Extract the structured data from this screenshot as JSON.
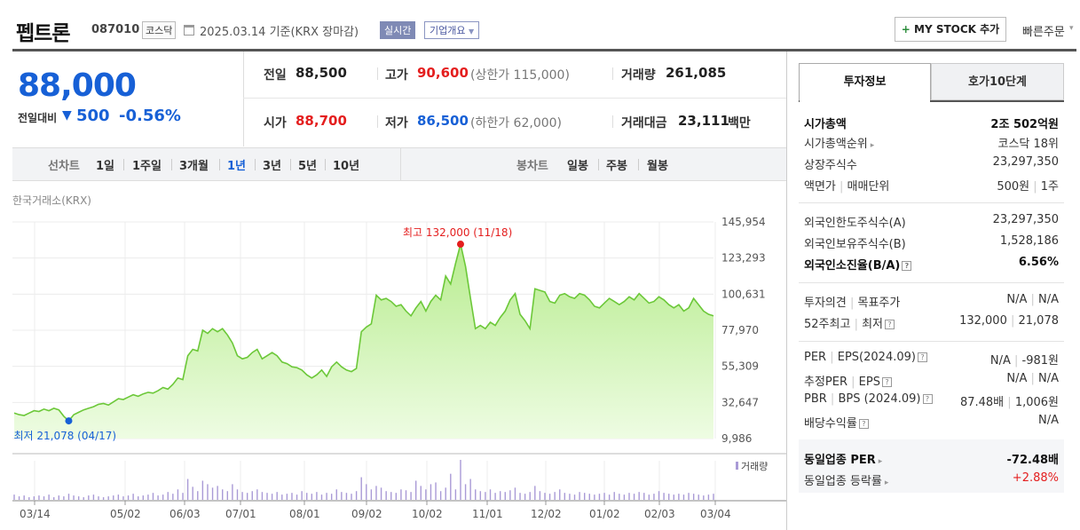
{
  "header": {
    "company": "펩트론",
    "code": "087010",
    "market": "코스닥",
    "base_date": "2025.03.14  기준(KRX 장마감)",
    "realtime": "실시간",
    "corp_info": "기업개요",
    "my_stock": "MY STOCK 추가",
    "quick_order": "빠른주문"
  },
  "price": {
    "current": "88,000",
    "change_label": "전일대비",
    "change": "500",
    "change_rate": "-0.56%",
    "prev_label": "전일",
    "prev": "88,500",
    "high_label": "고가",
    "high": "90,600",
    "upper_limit": "(상한가 115,000)",
    "volume_label": "거래량",
    "volume": "261,085",
    "open_label": "시가",
    "open": "88,700",
    "low_label": "저가",
    "low": "86,500",
    "lower_limit": "(하한가 62,000)",
    "amount_label": "거래대금",
    "amount": "23,111",
    "amount_unit": "백만"
  },
  "period_bar": {
    "line_label": "선차트",
    "line_periods": [
      "1일",
      "1주일",
      "3개월",
      "1년",
      "3년",
      "5년",
      "10년"
    ],
    "selected": "1년",
    "candle_label": "봉차트",
    "candle_periods": [
      "일봉",
      "주봉",
      "월봉"
    ]
  },
  "chart_data": {
    "type": "area",
    "source": "한국거래소(KRX)",
    "y_ticks": [
      "145,954",
      "123,293",
      "100,631",
      "77,970",
      "55,309",
      "32,647",
      "9,986"
    ],
    "ylim": [
      9986,
      145954
    ],
    "x_ticks": [
      "03/14",
      "05/02",
      "06/03",
      "07/01",
      "08/01",
      "09/02",
      "10/02",
      "11/01",
      "12/02",
      "01/02",
      "02/03",
      "03/04"
    ],
    "high_label": "최고 132,000 (11/18)",
    "low_label": "최저 21,078 (04/17)",
    "volume_label": "거래량",
    "prices": [
      26000,
      25000,
      24500,
      26000,
      27500,
      27000,
      28500,
      27500,
      29000,
      28000,
      24000,
      21078,
      25000,
      26500,
      28000,
      29000,
      30000,
      31500,
      32000,
      31000,
      33000,
      35000,
      34500,
      36000,
      37500,
      36500,
      38000,
      39000,
      38500,
      40000,
      42000,
      41000,
      44000,
      48000,
      47000,
      62000,
      66000,
      65000,
      78000,
      76000,
      79000,
      77000,
      79000,
      75000,
      70000,
      62000,
      60000,
      61000,
      64000,
      66000,
      60000,
      62000,
      64000,
      62000,
      58000,
      57000,
      55000,
      54500,
      53000,
      50000,
      48000,
      50000,
      53000,
      49000,
      55000,
      58000,
      55000,
      53000,
      52000,
      54000,
      77000,
      80000,
      82000,
      100000,
      97000,
      98000,
      96000,
      93000,
      94000,
      90000,
      87000,
      92000,
      96000,
      90000,
      96000,
      100000,
      97000,
      112000,
      107000,
      120000,
      132000,
      118000,
      98000,
      79000,
      81000,
      79000,
      83000,
      81000,
      86000,
      90000,
      97000,
      101000,
      88000,
      84000,
      79000,
      104000,
      103000,
      102000,
      96000,
      95000,
      100000,
      101000,
      99000,
      98000,
      101000,
      100000,
      97000,
      93000,
      92000,
      95000,
      98000,
      96000,
      94000,
      96000,
      99000,
      97000,
      101000,
      98000,
      95000,
      96000,
      99000,
      97000,
      94000,
      92000,
      94000,
      90000,
      92000,
      98000,
      94000,
      90000,
      88000,
      87000
    ],
    "volumes": [
      6,
      4,
      5,
      3,
      4,
      5,
      4,
      6,
      3,
      5,
      4,
      7,
      5,
      4,
      3,
      5,
      6,
      4,
      3,
      4,
      5,
      6,
      4,
      5,
      7,
      4,
      5,
      6,
      8,
      5,
      6,
      9,
      7,
      12,
      8,
      24,
      15,
      10,
      22,
      18,
      14,
      16,
      12,
      10,
      18,
      12,
      9,
      8,
      10,
      12,
      9,
      8,
      7,
      9,
      6,
      7,
      8,
      6,
      10,
      8,
      7,
      9,
      6,
      8,
      7,
      12,
      9,
      8,
      7,
      10,
      26,
      18,
      12,
      16,
      14,
      10,
      9,
      8,
      12,
      11,
      9,
      22,
      16,
      12,
      18,
      20,
      10,
      14,
      30,
      12,
      46,
      18,
      24,
      12,
      10,
      9,
      12,
      8,
      10,
      9,
      11,
      14,
      8,
      7,
      9,
      16,
      10,
      8,
      7,
      9,
      12,
      8,
      7,
      6,
      9,
      8,
      7,
      6,
      7,
      8,
      6,
      9,
      7,
      6,
      8,
      7,
      9,
      8,
      6,
      7,
      10,
      8,
      7,
      6,
      7,
      6,
      8,
      7,
      6,
      5,
      6,
      7
    ]
  },
  "invest_info": {
    "tab1": "투자정보",
    "tab2": "호가10단계",
    "market_cap_label": "시가총액",
    "market_cap": "2조 502억원",
    "market_cap_rank_label": "시가총액순위",
    "market_cap_rank": "코스닥 18위",
    "shares_label": "상장주식수",
    "shares": "23,297,350",
    "par_label": "액면가",
    "unit_label": "매매단위",
    "par": "500원",
    "unit": "1주",
    "foreign_limit_label": "외국인한도주식수(A)",
    "foreign_limit": "23,297,350",
    "foreign_hold_label": "외국인보유주식수(B)",
    "foreign_hold": "1,528,186",
    "foreign_rate_label": "외국인소진율(B/A)",
    "foreign_rate": "6.56%",
    "opinion_label": "투자의견",
    "target_label": "목표주가",
    "opinion": "N/A",
    "target": "N/A",
    "high52_label": "52주최고",
    "low52_label": "최저",
    "high52": "132,000",
    "low52": "21,078",
    "per_label": "PER",
    "eps_label": "EPS(2024.09)",
    "per": "N/A",
    "eps": "-981원",
    "est_per_label": "추정PER",
    "est_eps_label": "EPS",
    "est_per": "N/A",
    "est_eps": "N/A",
    "pbr_label": "PBR",
    "bps_label": "BPS (2024.09)",
    "pbr": "87.48배",
    "bps": "1,006원",
    "div_label": "배당수익률",
    "div": "N/A",
    "ind_per_label": "동일업종 PER",
    "ind_per": "-72.48배",
    "ind_chg_label": "동일업종 등락률",
    "ind_chg": "+2.88%"
  }
}
